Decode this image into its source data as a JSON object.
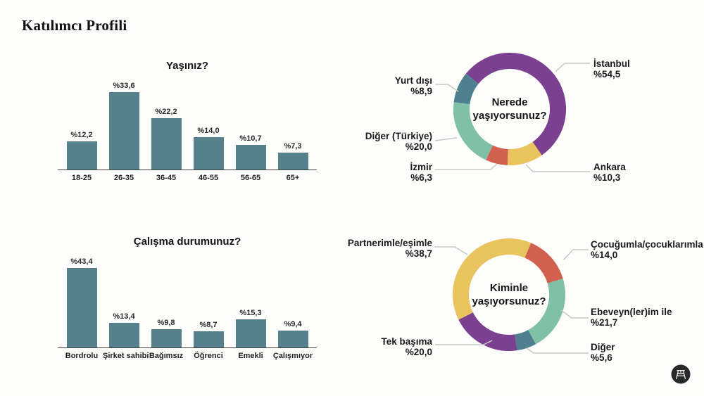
{
  "page": {
    "title": "Katılımcı Profili",
    "background": "#fdfdfb"
  },
  "theme": {
    "bar_color": "#56808c",
    "purple": "#7b4190",
    "yellow": "#e9c35e",
    "red": "#d2604f",
    "seafoam": "#7fc0a6",
    "slate_teal": "#4f808f",
    "leader_line": "#c8c8c8",
    "logo_bg": "#26282a"
  },
  "logo": {
    "icon": "stool-icon"
  },
  "chart_data": [
    {
      "id": "age",
      "type": "bar",
      "title": "Yaşınız?",
      "categories": [
        "18-25",
        "26-35",
        "36-45",
        "46-55",
        "56-65",
        "65+"
      ],
      "values": [
        12.2,
        33.6,
        22.2,
        14.0,
        10.7,
        7.3
      ],
      "value_labels": [
        "%12,2",
        "%33,6",
        "%22,2",
        "%14,0",
        "%10,7",
        "%7,3"
      ],
      "bar_color": "#56808c",
      "xlabel": "",
      "ylabel": "",
      "ylim": [
        0,
        36
      ],
      "grid": false
    },
    {
      "id": "residence",
      "type": "donut",
      "center": {
        "line1": "Nerede",
        "line2": "yaşıyorsunuz?"
      },
      "start_angle_deg": -51,
      "segments": [
        {
          "label": "İstanbul",
          "value": 54.5,
          "display": "%54,5",
          "color": "#7b4190"
        },
        {
          "label": "Ankara",
          "value": 10.3,
          "display": "%10,3",
          "color": "#e9c35e"
        },
        {
          "label": "İzmir",
          "value": 6.3,
          "display": "%6,3",
          "color": "#d2604f"
        },
        {
          "label": "Diğer (Türkiye)",
          "value": 20.0,
          "display": "%20,0",
          "color": "#7fc0a6"
        },
        {
          "label": "Yurt dışı",
          "value": 8.9,
          "display": "%8,9",
          "color": "#4f808f"
        }
      ]
    },
    {
      "id": "work",
      "type": "bar",
      "title": "Çalışma durumunuz?",
      "categories": [
        "Bordrolu",
        "Şirket sahibi",
        "Bağımsız",
        "Öğrenci",
        "Emekli",
        "Çalışmıyor"
      ],
      "values": [
        43.4,
        13.4,
        9.8,
        8.7,
        15.3,
        9.4
      ],
      "value_labels": [
        "%43,4",
        "%13,4",
        "%9,8",
        "%8,7",
        "%15,3",
        "%9,4"
      ],
      "bar_color": "#56808c",
      "xlabel": "",
      "ylabel": "",
      "ylim": [
        0,
        46
      ],
      "grid": false
    },
    {
      "id": "household",
      "type": "donut",
      "center": {
        "line1": "Kiminle",
        "line2": "yaşıyorsunuz?"
      },
      "start_angle_deg": 23,
      "segments": [
        {
          "label": "Çocuğumla/çocuklarımla",
          "value": 14.0,
          "display": "%14,0",
          "color": "#d2604f"
        },
        {
          "label": "Ebeveyn(ler)im ile",
          "value": 21.7,
          "display": "%21,7",
          "color": "#7fc0a6"
        },
        {
          "label": "Diğer",
          "value": 5.6,
          "display": "%5,6",
          "color": "#4f808f"
        },
        {
          "label": "Tek başıma",
          "value": 20.0,
          "display": "%20,0",
          "color": "#7b4190"
        },
        {
          "label": "Partnerimle/eşimle",
          "value": 38.7,
          "display": "%38,7",
          "color": "#e9c35e"
        }
      ]
    }
  ]
}
